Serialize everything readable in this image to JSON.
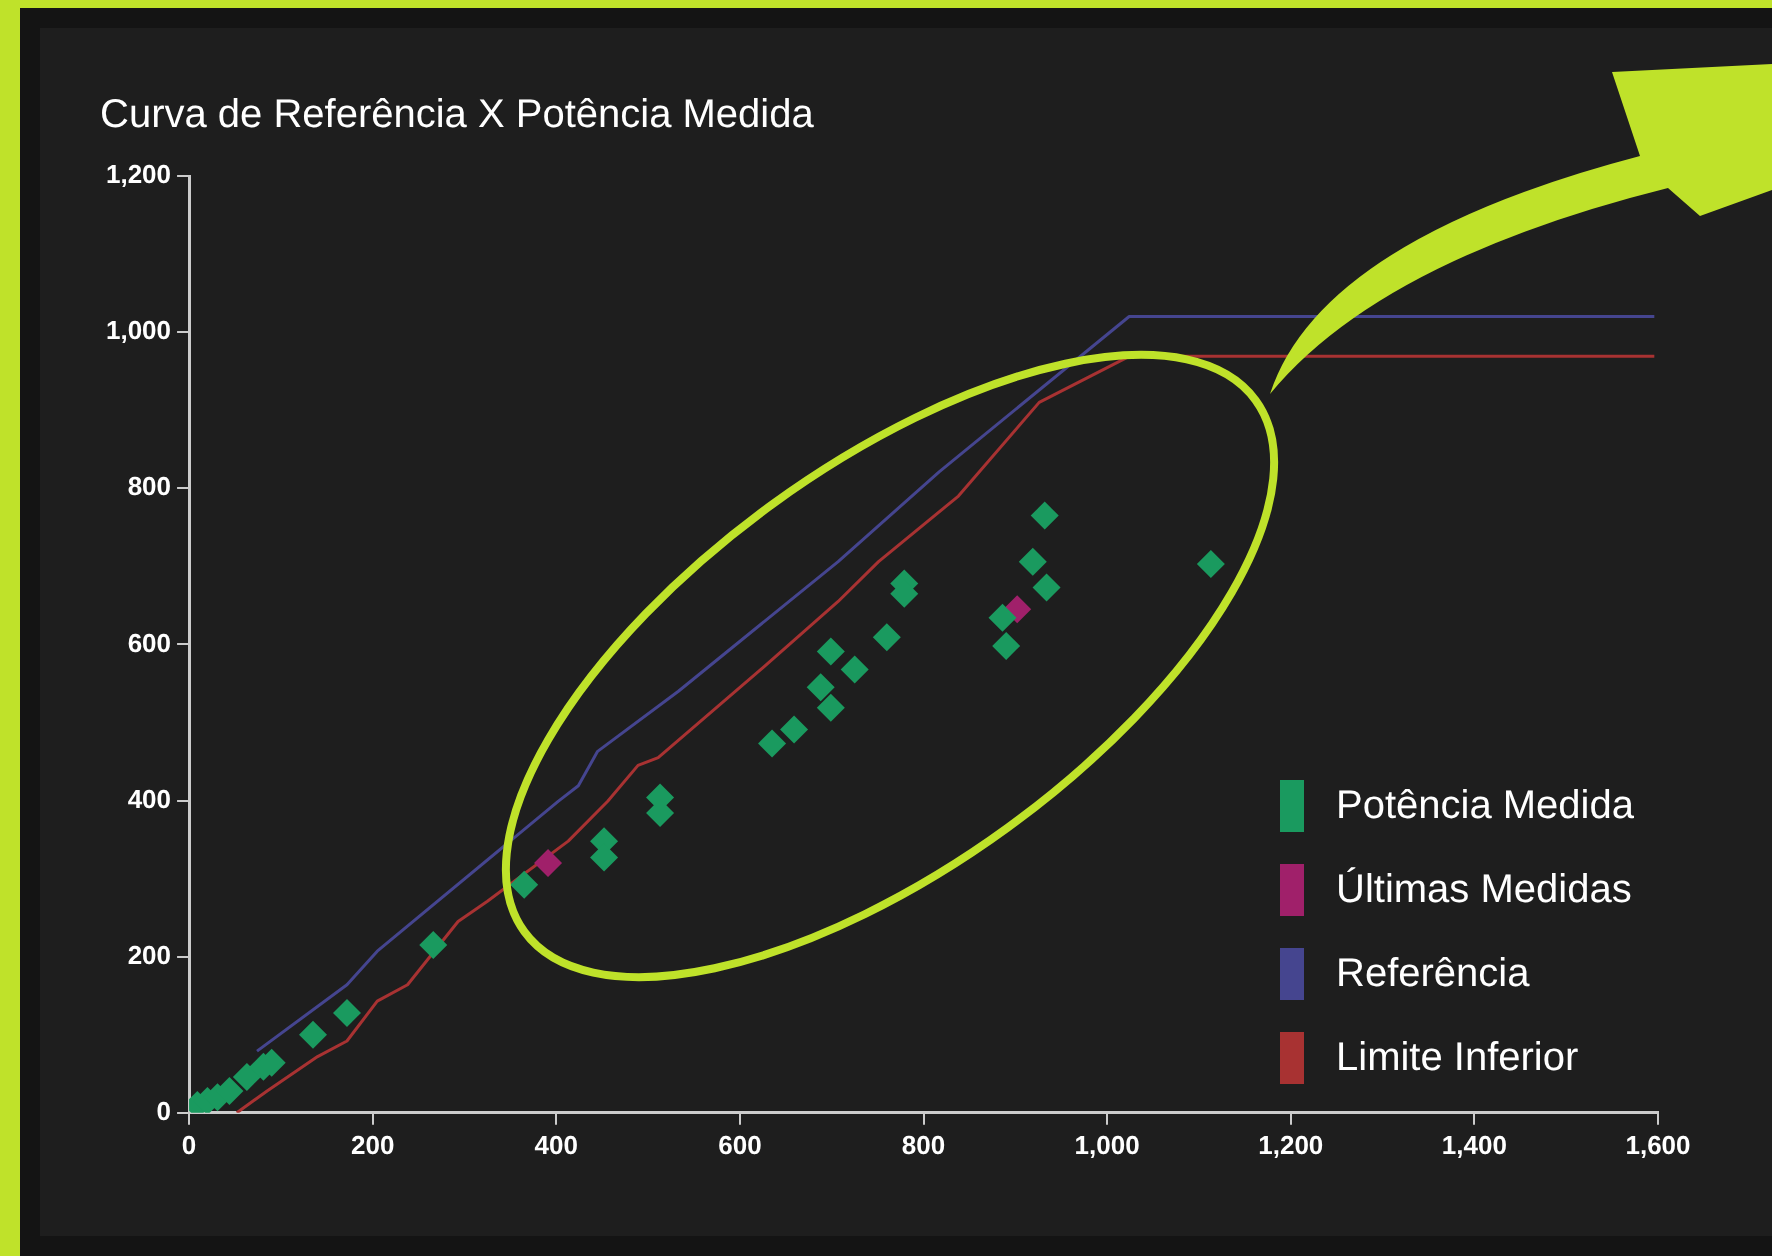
{
  "chart_data": {
    "type": "scatter",
    "title": "Curva de Referência X Potência Medida",
    "xlim": [
      0,
      1600
    ],
    "ylim": [
      0,
      1200
    ],
    "xticks": [
      0,
      200,
      400,
      600,
      800,
      {
        "value": 1000,
        "label": "1,000"
      },
      {
        "value": 1200,
        "label": "1,200"
      },
      {
        "value": 1400,
        "label": "1,400"
      },
      {
        "value": 1600,
        "label": "1,600"
      }
    ],
    "yticks": [
      0,
      200,
      400,
      600,
      800,
      {
        "value": 1000,
        "label": "1,000"
      },
      {
        "value": 1200,
        "label": "1,200"
      }
    ],
    "grid": false,
    "legend": "bottom right",
    "series": [
      {
        "name": "Potência Medida",
        "marker": "diamond",
        "color": "#1a9a5f",
        "x": [
          9,
          20,
          31,
          44,
          63,
          81,
          90,
          135,
          172,
          266,
          365,
          452,
          452,
          513,
          513,
          635,
          659,
          688,
          699,
          699,
          725,
          760,
          779,
          779,
          886,
          890,
          919,
          934,
          932,
          1113
        ],
        "values": [
          10,
          15,
          20,
          28,
          46,
          59,
          64,
          100,
          128,
          215,
          292,
          348,
          327,
          404,
          384,
          473,
          491,
          545,
          519,
          591,
          568,
          609,
          678,
          665,
          634,
          598,
          706,
          673,
          765,
          703
        ]
      },
      {
        "name": "Últimas Medidas",
        "marker": "diamond",
        "color": "#a0206a",
        "x": [
          391,
          902
        ],
        "values": [
          320,
          645
        ]
      },
      {
        "name": "Referência",
        "type": "line",
        "marker": "none",
        "color": "#45458f",
        "x": [
          74,
          172,
          205,
          402,
          424,
          445,
          533,
          707,
          817,
          1024,
          1596
        ],
        "values": [
          79,
          164,
          207,
          399,
          419,
          463,
          540,
          706,
          821,
          1020,
          1020
        ]
      },
      {
        "name": "Limite Inferior",
        "type": "line",
        "marker": "none",
        "color": "#a83232",
        "x": [
          52,
          85,
          140,
          172,
          205,
          238,
          293,
          325,
          413,
          456,
          489,
          511,
          620,
          707,
          751,
          838,
          926,
          1024,
          1596
        ],
        "values": [
          0,
          28,
          72,
          92,
          143,
          164,
          245,
          271,
          348,
          399,
          445,
          455,
          565,
          655,
          706,
          790,
          910,
          969,
          969
        ]
      }
    ]
  }
}
